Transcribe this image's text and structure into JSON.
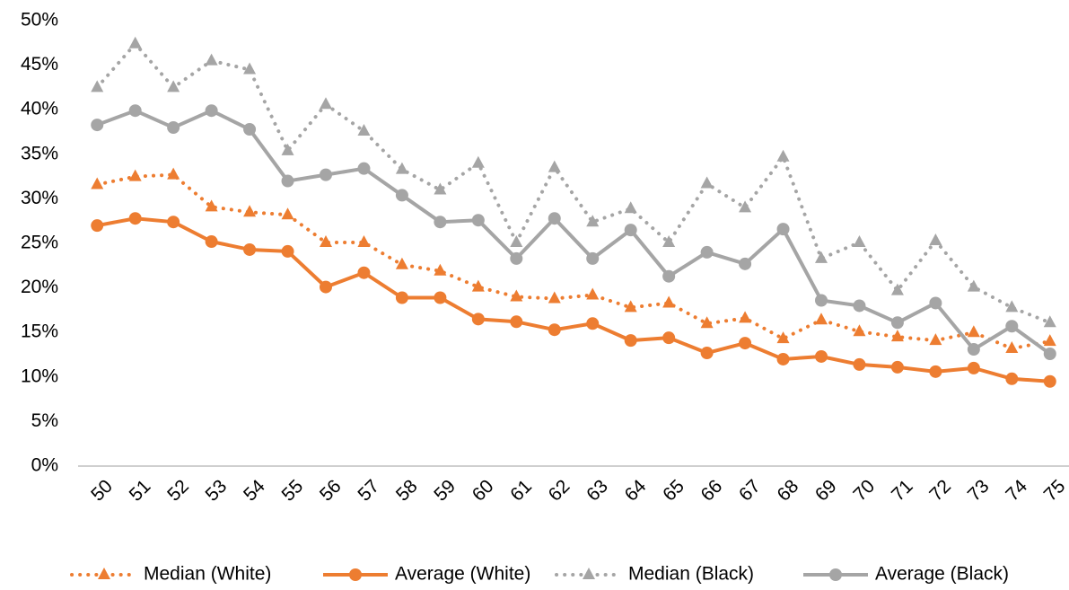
{
  "chart_data": {
    "type": "line",
    "categories": [
      "50",
      "51",
      "52",
      "53",
      "54",
      "55",
      "56",
      "57",
      "58",
      "59",
      "60",
      "61",
      "62",
      "63",
      "64",
      "65",
      "66",
      "67",
      "68",
      "69",
      "70",
      "71",
      "72",
      "73",
      "74",
      "75"
    ],
    "series": [
      {
        "name": "Median (White)",
        "color": "#ed7d31",
        "line_style": "dotted",
        "marker": "triangle",
        "values": [
          31.6,
          32.5,
          32.7,
          29.1,
          28.5,
          28.2,
          25.1,
          25.1,
          22.6,
          21.9,
          20.1,
          19.0,
          18.8,
          19.2,
          17.8,
          18.3,
          16.0,
          16.6,
          14.3,
          16.4,
          15.1,
          14.5,
          14.1,
          15.0,
          13.2,
          14.0
        ]
      },
      {
        "name": "Average (White)",
        "color": "#ed7d31",
        "line_style": "solid",
        "marker": "circle",
        "values": [
          27.0,
          27.8,
          27.4,
          25.2,
          24.3,
          24.1,
          20.1,
          21.7,
          18.9,
          18.9,
          16.5,
          16.2,
          15.3,
          16.0,
          14.1,
          14.4,
          12.7,
          13.8,
          12.0,
          12.3,
          11.4,
          11.1,
          10.6,
          11.0,
          9.8,
          9.5
        ]
      },
      {
        "name": "Median (Black)",
        "color": "#a5a5a5",
        "line_style": "dotted",
        "marker": "triangle",
        "values": [
          42.5,
          47.4,
          42.5,
          45.5,
          44.5,
          35.4,
          40.6,
          37.6,
          33.3,
          31.0,
          34.0,
          25.1,
          33.5,
          27.4,
          28.9,
          25.1,
          31.7,
          29.0,
          34.7,
          23.3,
          25.1,
          19.7,
          25.3,
          20.1,
          17.8,
          16.1
        ]
      },
      {
        "name": "Average (Black)",
        "color": "#a5a5a5",
        "line_style": "solid",
        "marker": "circle",
        "values": [
          38.3,
          39.9,
          38.0,
          39.9,
          37.8,
          32.0,
          32.7,
          33.4,
          30.4,
          27.4,
          27.6,
          23.3,
          27.8,
          23.3,
          26.5,
          21.3,
          24.0,
          22.7,
          26.6,
          18.6,
          18.0,
          16.1,
          18.3,
          13.1,
          15.7,
          12.6
        ]
      }
    ],
    "ylim": [
      0,
      50
    ],
    "yticks": [
      {
        "value": 0,
        "label": "0%"
      },
      {
        "value": 5,
        "label": "5%"
      },
      {
        "value": 10,
        "label": "10%"
      },
      {
        "value": 15,
        "label": "15%"
      },
      {
        "value": 20,
        "label": "20%"
      },
      {
        "value": 25,
        "label": "25%"
      },
      {
        "value": 30,
        "label": "30%"
      },
      {
        "value": 35,
        "label": "35%"
      },
      {
        "value": 40,
        "label": "40%"
      },
      {
        "value": 45,
        "label": "45%"
      },
      {
        "value": 50,
        "label": "50%"
      }
    ],
    "grid": false,
    "legend": "bottom"
  }
}
